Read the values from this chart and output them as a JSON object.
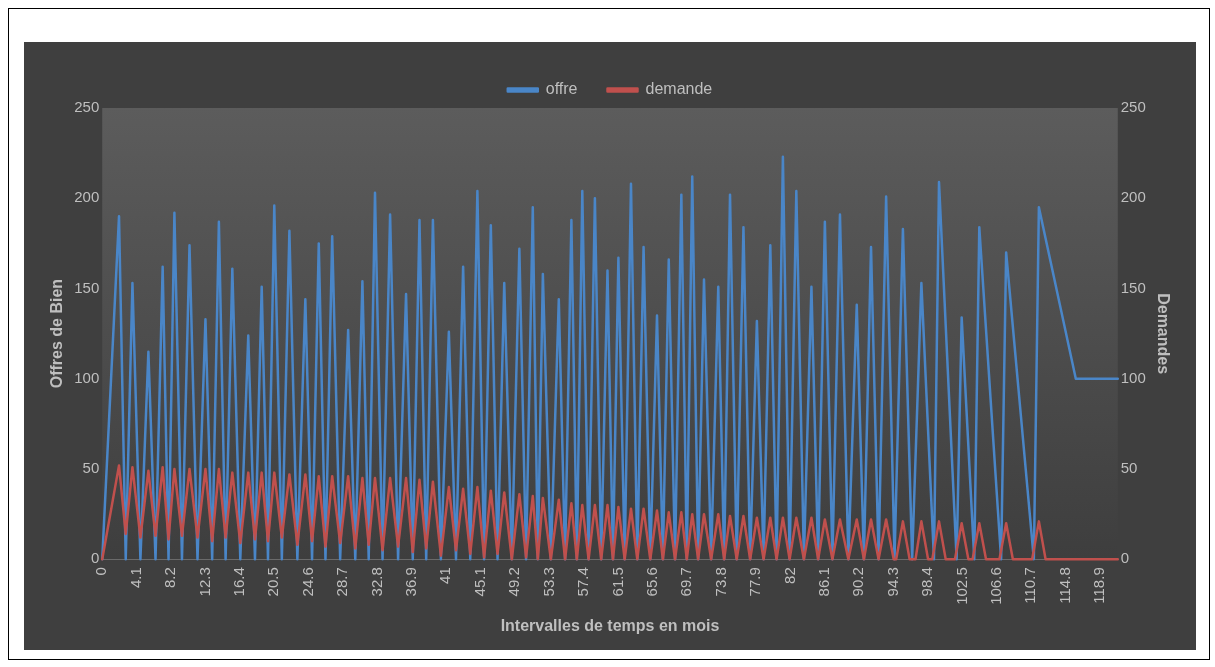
{
  "chart_data": {
    "type": "line",
    "xlabel": "Intervalles de temps en mois",
    "ylabel": "Offres de Bien",
    "y2label": "Demandes",
    "legend": "top",
    "grid": false,
    "marker": "none",
    "line_style": "solid",
    "xlim": [
      0,
      121
    ],
    "xticks": [
      0,
      4.1,
      8.2,
      12.3,
      16.4,
      20.5,
      24.6,
      28.7,
      32.8,
      36.9,
      41,
      45.1,
      49.2,
      53.3,
      57.4,
      61.5,
      65.6,
      69.7,
      73.8,
      77.9,
      82,
      86.1,
      90.2,
      94.3,
      98.4,
      102.5,
      106.6,
      110.7,
      114.8,
      118.9
    ],
    "ylim": [
      0,
      250
    ],
    "yticks": [
      0,
      50,
      100,
      150,
      200,
      250
    ],
    "y2lim": [
      0,
      250
    ],
    "y2ticks": [
      0,
      50,
      100,
      150,
      200,
      250
    ],
    "series": [
      {
        "name": "offre",
        "color": "#4a86c8",
        "x": [
          0,
          2.0,
          2.8,
          3.6,
          4.55,
          5.5,
          6.35,
          7.2,
          7.9,
          8.6,
          9.5,
          10.4,
          11.35,
          12.3,
          13.1,
          13.9,
          14.7,
          15.5,
          16.45,
          17.4,
          18.2,
          19.0,
          19.75,
          20.5,
          21.4,
          22.3,
          23.25,
          24.2,
          25.0,
          25.8,
          26.6,
          27.4,
          28.35,
          29.3,
          30.15,
          31.0,
          31.75,
          32.5,
          33.4,
          34.3,
          35.25,
          36.2,
          37.0,
          37.8,
          38.6,
          39.4,
          40.35,
          41.3,
          42.15,
          43.0,
          43.85,
          44.7,
          45.5,
          46.3,
          47.1,
          47.9,
          48.8,
          49.7,
          50.5,
          51.3,
          51.9,
          52.5,
          53.45,
          54.4,
          55.15,
          55.9,
          56.55,
          57.2,
          57.95,
          58.7,
          59.45,
          60.2,
          60.85,
          61.5,
          62.25,
          63.0,
          63.75,
          64.5,
          65.3,
          66.1,
          66.8,
          67.5,
          68.25,
          69.0,
          69.65,
          70.3,
          71.0,
          71.7,
          72.55,
          73.4,
          74.1,
          74.8,
          75.6,
          76.4,
          77.2,
          78.0,
          78.8,
          79.6,
          80.35,
          81.1,
          81.9,
          82.7,
          83.6,
          84.5,
          85.3,
          86.1,
          87.0,
          87.9,
          88.9,
          89.9,
          90.75,
          91.6,
          92.5,
          93.4,
          94.4,
          95.4,
          96.5,
          97.6,
          99.1,
          99.7,
          101.8,
          102.4,
          103.9,
          104.5,
          107.1,
          107.7,
          111.0,
          111.6,
          116.0,
          121.0
        ],
        "values": [
          0,
          190,
          0,
          153,
          0,
          115,
          0,
          162,
          0,
          192,
          0,
          174,
          0,
          133,
          0,
          187,
          0,
          161,
          0,
          124,
          0,
          151,
          0,
          196,
          0,
          182,
          0,
          144,
          0,
          175,
          0,
          179,
          0,
          127,
          0,
          154,
          0,
          203,
          0,
          191,
          0,
          147,
          0,
          188,
          0,
          188,
          0,
          126,
          0,
          162,
          0,
          204,
          0,
          185,
          0,
          153,
          0,
          172,
          0,
          195,
          0,
          158,
          0,
          144,
          0,
          188,
          0,
          204,
          0,
          200,
          0,
          160,
          0,
          167,
          0,
          208,
          0,
          173,
          0,
          135,
          0,
          166,
          0,
          202,
          0,
          212,
          0,
          155,
          0,
          151,
          0,
          202,
          0,
          184,
          0,
          132,
          0,
          174,
          0,
          223,
          0,
          204,
          0,
          151,
          0,
          187,
          0,
          191,
          0,
          141,
          0,
          173,
          0,
          201,
          0,
          183,
          0,
          153,
          0,
          209,
          0,
          134,
          0,
          184,
          0,
          170,
          0,
          195,
          100,
          100
        ]
      },
      {
        "name": "demande",
        "color": "#c0504d",
        "axis": "y2",
        "x": [
          0,
          2.0,
          2.8,
          3.6,
          4.55,
          5.5,
          6.35,
          7.2,
          7.9,
          8.6,
          9.5,
          10.4,
          11.35,
          12.3,
          13.1,
          13.9,
          14.7,
          15.5,
          16.45,
          17.4,
          18.2,
          19.0,
          19.75,
          20.5,
          21.4,
          22.3,
          23.25,
          24.2,
          25.0,
          25.8,
          26.6,
          27.4,
          28.35,
          29.3,
          30.15,
          31.0,
          31.75,
          32.5,
          33.4,
          34.3,
          35.25,
          36.2,
          37.0,
          37.8,
          38.6,
          39.4,
          40.35,
          41.3,
          42.15,
          43.0,
          43.85,
          44.7,
          45.5,
          46.3,
          47.1,
          47.9,
          48.8,
          49.7,
          50.5,
          51.3,
          51.9,
          52.5,
          53.45,
          54.4,
          55.15,
          55.9,
          56.55,
          57.2,
          57.95,
          58.7,
          59.45,
          60.2,
          60.85,
          61.5,
          62.25,
          63.0,
          63.75,
          64.5,
          65.3,
          66.1,
          66.8,
          67.5,
          68.25,
          69.0,
          69.65,
          70.3,
          71.0,
          71.7,
          72.55,
          73.4,
          74.1,
          74.8,
          75.6,
          76.4,
          77.2,
          78.0,
          78.8,
          79.6,
          80.35,
          81.1,
          81.9,
          82.7,
          83.6,
          84.5,
          85.3,
          86.1,
          87.0,
          87.9,
          88.9,
          89.9,
          90.75,
          91.6,
          92.5,
          93.4,
          94.3,
          94.6,
          95.4,
          96.2,
          96.9,
          97.6,
          98.4,
          98.9,
          99.7,
          100.5,
          101.6,
          102.4,
          103.2,
          103.7,
          104.5,
          105.3,
          106.9,
          107.7,
          108.5,
          110.8,
          111.6,
          112.4,
          121.0
        ],
        "values": [
          0,
          52,
          14,
          51,
          12,
          49,
          13,
          51,
          11,
          50,
          13,
          50,
          12,
          50,
          10,
          50,
          12,
          48,
          9,
          48,
          11,
          48,
          10,
          48,
          12,
          47,
          8,
          47,
          10,
          46,
          7,
          46,
          9,
          46,
          6,
          45,
          8,
          45,
          5,
          45,
          7,
          45,
          4,
          44,
          6,
          43,
          2,
          40,
          5,
          39,
          3,
          40,
          1,
          38,
          3,
          37,
          0,
          36,
          1,
          35,
          0,
          34,
          0,
          33,
          0,
          31,
          0,
          30,
          0,
          30,
          0,
          30,
          0,
          29,
          0,
          28,
          0,
          28,
          0,
          27,
          0,
          26,
          0,
          26,
          0,
          25,
          0,
          25,
          0,
          25,
          0,
          24,
          0,
          24,
          0,
          23,
          0,
          23,
          0,
          23,
          0,
          23,
          0,
          23,
          0,
          22,
          0,
          22,
          0,
          22,
          0,
          22,
          0,
          22,
          0,
          0,
          21,
          0,
          0,
          21,
          0,
          0,
          21,
          0,
          0,
          20,
          0,
          0,
          20,
          0,
          0,
          20,
          0,
          0,
          21,
          0,
          0
        ]
      }
    ]
  }
}
